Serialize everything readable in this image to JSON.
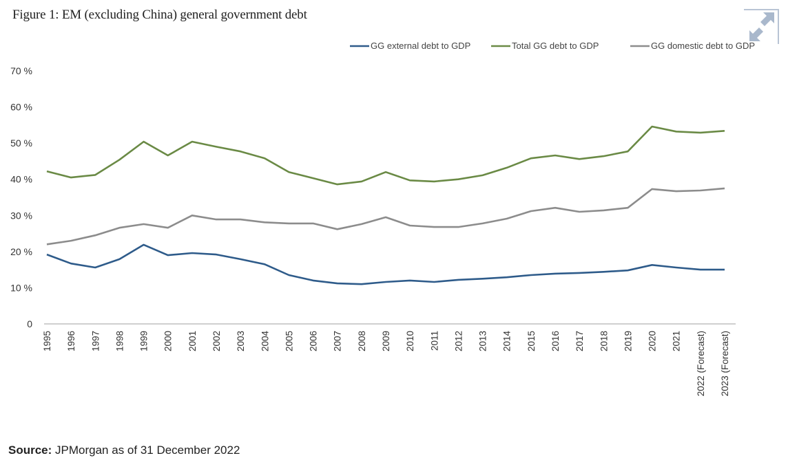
{
  "figure": {
    "title": "Figure 1: EM (excluding China) general government debt",
    "source_label": "Source:",
    "source_text": "JPMorgan as of 31 December 2022",
    "expand_icon": "expand-arrows-icon"
  },
  "chart_data": {
    "type": "line",
    "title": "Figure 1: EM (excluding China) general government debt",
    "xlabel": "",
    "ylabel": "",
    "ylim": [
      0,
      70
    ],
    "yticks": [
      0,
      10,
      20,
      30,
      40,
      50,
      60,
      70
    ],
    "ytick_labels": [
      "0",
      "10 %",
      "20 %",
      "30 %",
      "40 %",
      "50 %",
      "60 %",
      "70 %"
    ],
    "grid": false,
    "legend_position": "top-right",
    "categories": [
      "1995",
      "1996",
      "1997",
      "1998",
      "1999",
      "2000",
      "2001",
      "2002",
      "2003",
      "2004",
      "2005",
      "2006",
      "2007",
      "2008",
      "2009",
      "2010",
      "2011",
      "2012",
      "2013",
      "2014",
      "2015",
      "2016",
      "2017",
      "2018",
      "2019",
      "2020",
      "2021",
      "2022 (Forecast)",
      "2023 (Forecast)"
    ],
    "series": [
      {
        "name": "GG external debt to GDP",
        "color": "#2e5b8a",
        "values": [
          19.2,
          16.7,
          15.6,
          17.9,
          21.9,
          19.0,
          19.6,
          19.2,
          17.9,
          16.5,
          13.5,
          12.0,
          11.2,
          11.0,
          11.6,
          12.0,
          11.6,
          12.2,
          12.5,
          12.9,
          13.5,
          13.9,
          14.1,
          14.4,
          14.8,
          16.3,
          15.6,
          15.0,
          15.0
        ]
      },
      {
        "name": "Total GG debt to GDP",
        "color": "#6a8a45",
        "values": [
          42.2,
          40.5,
          41.2,
          45.4,
          50.4,
          46.6,
          50.4,
          49.0,
          47.7,
          45.8,
          42.0,
          40.3,
          38.6,
          39.4,
          42.0,
          39.7,
          39.4,
          40.0,
          41.1,
          43.2,
          45.8,
          46.6,
          45.6,
          46.4,
          47.7,
          54.6,
          53.2,
          52.9,
          53.4
        ]
      },
      {
        "name": "GG domestic debt to GDP",
        "color": "#8c8c8c",
        "values": [
          22.0,
          23.0,
          24.5,
          26.6,
          27.6,
          26.6,
          30.0,
          28.9,
          28.9,
          28.1,
          27.8,
          27.8,
          26.2,
          27.6,
          29.5,
          27.2,
          26.8,
          26.8,
          27.8,
          29.1,
          31.2,
          32.1,
          31.0,
          31.4,
          32.1,
          37.3,
          36.7,
          36.9,
          37.5
        ]
      }
    ]
  }
}
